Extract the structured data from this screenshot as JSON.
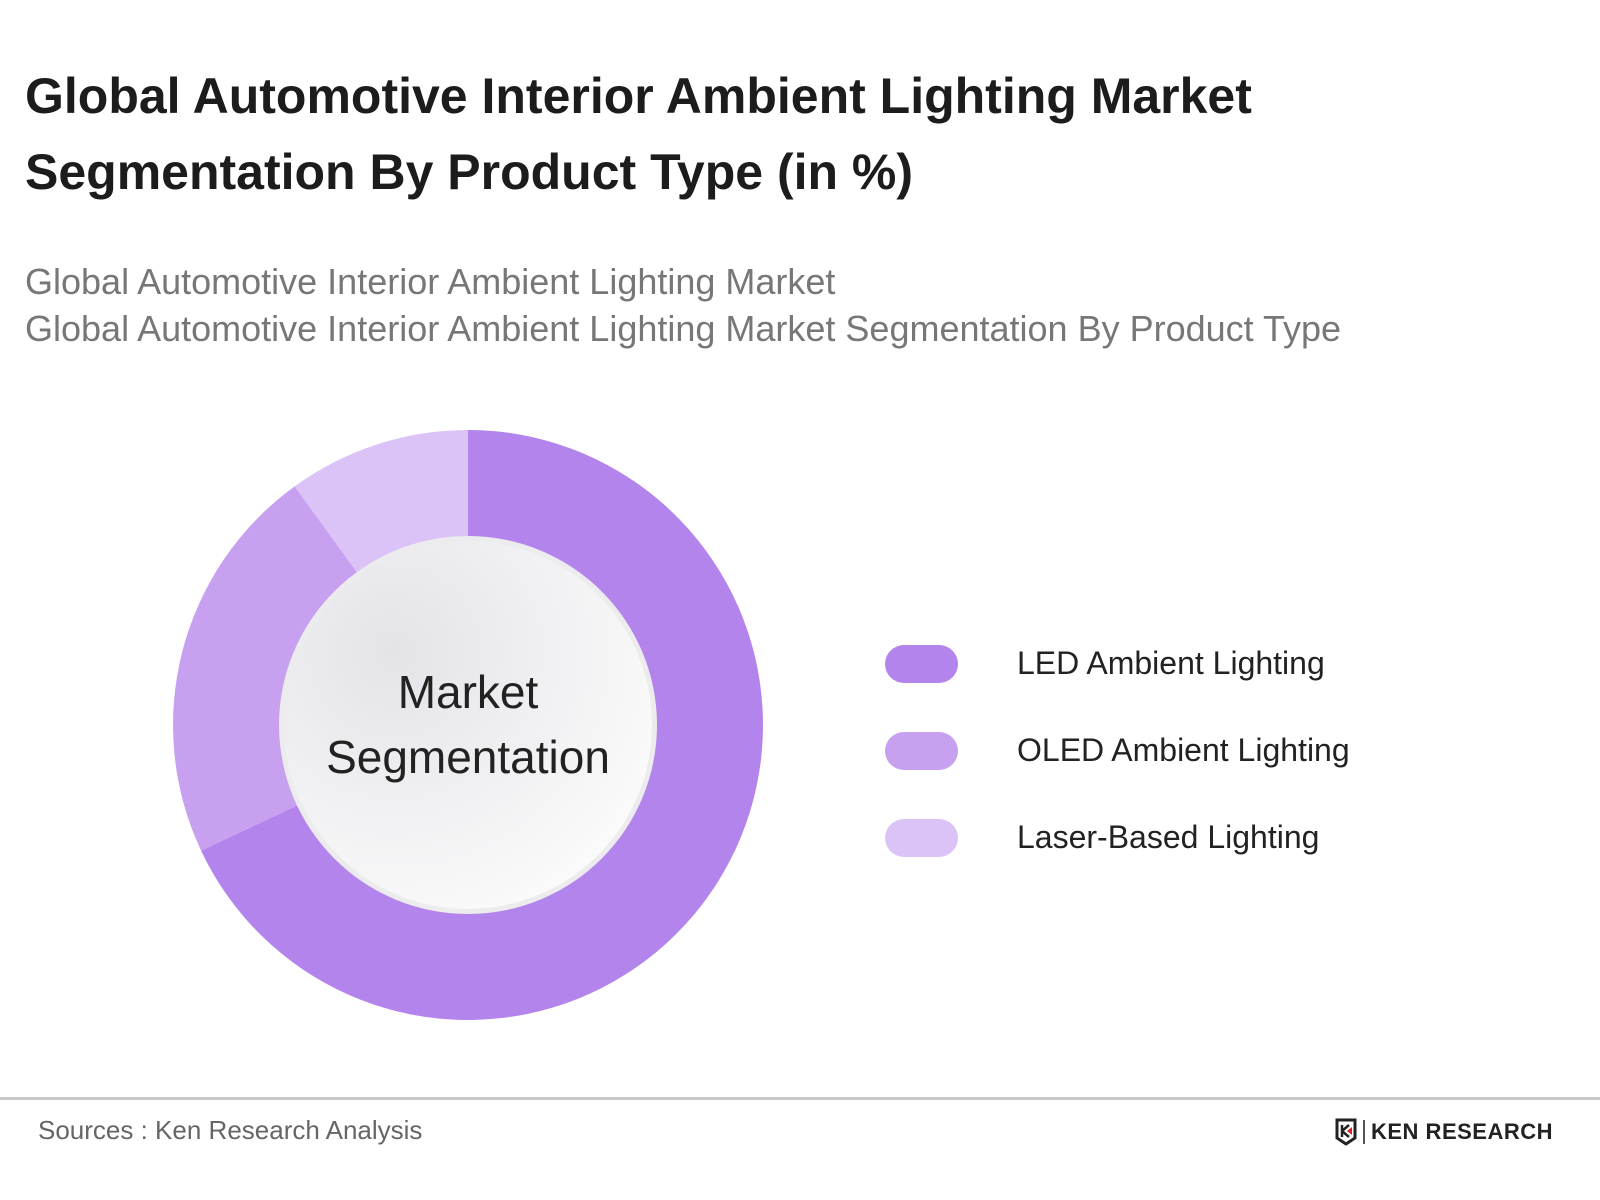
{
  "title": "Global Automotive Interior Ambient Lighting Market Segmentation By Product Type (in %)",
  "subtitle_lines": [
    "Global Automotive Interior Ambient Lighting Market",
    "Global Automotive Interior Ambient Lighting Market Segmentation By Product Type"
  ],
  "chart_data": {
    "type": "pie",
    "variant": "donut",
    "title": "Global Automotive Interior Ambient Lighting Market Segmentation By Product Type (in %)",
    "center_label": [
      "Market",
      "Segmentation"
    ],
    "categories": [
      "LED Ambient Lighting",
      "OLED Ambient Lighting",
      "Laser-Based Lighting"
    ],
    "values": [
      68,
      22,
      10
    ],
    "colors": [
      "#b384ec",
      "#c7a0ef",
      "#dcc3f7"
    ],
    "legend_position": "right"
  },
  "footer": {
    "source": "Sources : Ken Research Analysis",
    "logo_text": "KEN RESEARCH"
  }
}
